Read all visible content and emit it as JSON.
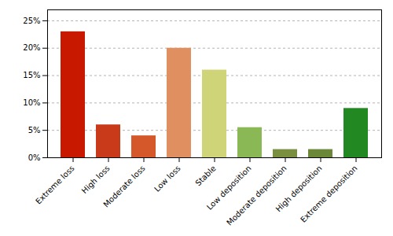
{
  "chart_data": {
    "type": "bar",
    "categories": [
      "Extreme loss",
      "High loss",
      "Moderate loss",
      "Low loss",
      "Stable",
      "Low deposition",
      "Moderate deposition",
      "High deposition",
      "Extreme deposition"
    ],
    "values": [
      23,
      6,
      4,
      20,
      16,
      5.5,
      1.5,
      1.5,
      9
    ],
    "colors": [
      "#c81800",
      "#c83a1a",
      "#d4582a",
      "#e09060",
      "#d0d478",
      "#8ab854",
      "#7a9040",
      "#6a8838",
      "#228822"
    ],
    "ylim": [
      0,
      27
    ],
    "yticks": [
      {
        "value": 0,
        "label": "0%"
      },
      {
        "value": 5,
        "label": "5%"
      },
      {
        "value": 10,
        "label": "10%"
      },
      {
        "value": 15,
        "label": "15%"
      },
      {
        "value": 20,
        "label": "20%"
      },
      {
        "value": 25,
        "label": "25%"
      }
    ],
    "grid": true
  }
}
